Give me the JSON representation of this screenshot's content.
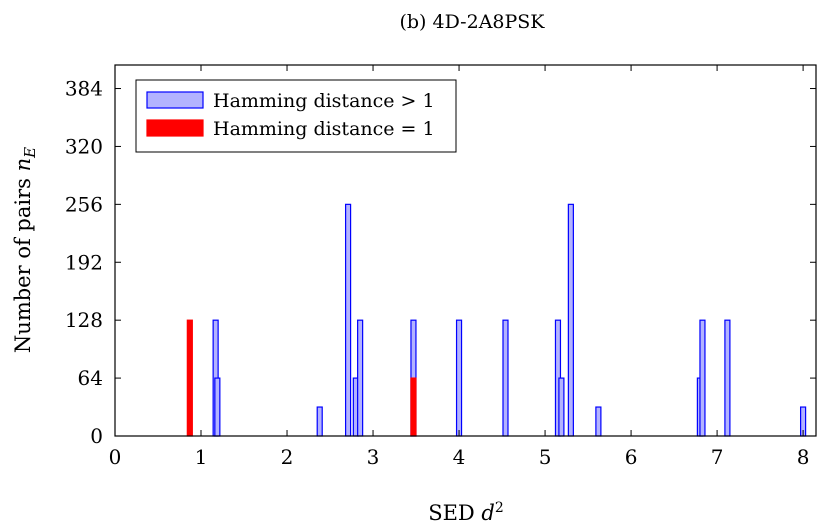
{
  "chart_data": {
    "type": "bar",
    "title": "(b) 4D-2A8PSK",
    "xlabel": "SED d²",
    "ylabel": "Number of pairs n_E",
    "xlim": [
      0,
      8.15
    ],
    "ylim": [
      0,
      410
    ],
    "xticks": [
      0,
      1,
      2,
      3,
      4,
      5,
      6,
      7,
      8
    ],
    "yticks": [
      0,
      64,
      128,
      192,
      256,
      320,
      384
    ],
    "grid": false,
    "legend_position": "top-left",
    "series": [
      {
        "name": "Hamming distance > 1",
        "color": "#0000ff",
        "fill": "#b3b3ff",
        "points": [
          {
            "x": 1.17,
            "y": 128
          },
          {
            "x": 1.19,
            "y": 64
          },
          {
            "x": 2.38,
            "y": 32
          },
          {
            "x": 2.71,
            "y": 256
          },
          {
            "x": 2.8,
            "y": 64
          },
          {
            "x": 2.85,
            "y": 128
          },
          {
            "x": 3.47,
            "y": 128
          },
          {
            "x": 4.0,
            "y": 128
          },
          {
            "x": 4.54,
            "y": 128
          },
          {
            "x": 5.15,
            "y": 128
          },
          {
            "x": 5.19,
            "y": 64
          },
          {
            "x": 5.3,
            "y": 256
          },
          {
            "x": 5.62,
            "y": 32
          },
          {
            "x": 6.8,
            "y": 64
          },
          {
            "x": 6.83,
            "y": 128
          },
          {
            "x": 7.12,
            "y": 128
          },
          {
            "x": 8.0,
            "y": 32
          }
        ]
      },
      {
        "name": "Hamming distance = 1",
        "color": "#ff0000",
        "fill": "#ff0000",
        "points": [
          {
            "x": 0.87,
            "y": 128
          },
          {
            "x": 3.47,
            "y": 64
          }
        ]
      }
    ]
  }
}
